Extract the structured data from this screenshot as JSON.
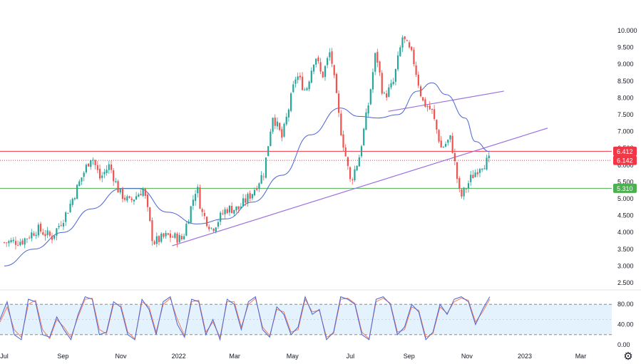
{
  "chart_data": {
    "type": "candlestick",
    "y_ticks": [
      "10.000",
      "9.500",
      "9.000",
      "8.500",
      "8.000",
      "7.500",
      "7.000",
      "6.500",
      "6.000",
      "5.500",
      "5.000",
      "4.500",
      "4.000",
      "3.500",
      "3.000",
      "2.500"
    ],
    "ylim": [
      2.5,
      10.0
    ],
    "x_ticks": [
      "Jul",
      "Sep",
      "Nov",
      "2022",
      "Mar",
      "May",
      "Jul",
      "Sep",
      "Nov",
      "2023",
      "Mar"
    ],
    "x_tick_dates": [
      "2021-07",
      "2021-09",
      "2021-11",
      "2022-01",
      "2022-03",
      "2022-05",
      "2022-07",
      "2022-09",
      "2022-11",
      "2023-01",
      "2023-03"
    ],
    "price_path": [
      [
        "2021-07-01",
        3.7
      ],
      [
        "2021-07-20",
        3.75
      ],
      [
        "2021-08-05",
        4.1
      ],
      [
        "2021-08-20",
        3.85
      ],
      [
        "2021-09-05",
        4.6
      ],
      [
        "2021-09-20",
        5.6
      ],
      [
        "2021-10-01",
        6.3
      ],
      [
        "2021-10-10",
        5.6
      ],
      [
        "2021-10-20",
        6.0
      ],
      [
        "2021-10-30",
        5.2
      ],
      [
        "2021-11-10",
        4.9
      ],
      [
        "2021-11-25",
        5.3
      ],
      [
        "2021-12-05",
        3.7
      ],
      [
        "2021-12-20",
        3.9
      ],
      [
        "2022-01-05",
        3.8
      ],
      [
        "2022-01-20",
        5.4
      ],
      [
        "2022-01-25",
        4.6
      ],
      [
        "2022-02-05",
        4.1
      ],
      [
        "2022-02-20",
        4.7
      ],
      [
        "2022-03-05",
        4.7
      ],
      [
        "2022-03-20",
        5.2
      ],
      [
        "2022-04-01",
        5.8
      ],
      [
        "2022-04-10",
        7.5
      ],
      [
        "2022-04-20",
        6.8
      ],
      [
        "2022-05-05",
        8.7
      ],
      [
        "2022-05-15",
        8.2
      ],
      [
        "2022-05-25",
        9.3
      ],
      [
        "2022-06-01",
        8.6
      ],
      [
        "2022-06-10",
        9.4
      ],
      [
        "2022-06-20",
        7.2
      ],
      [
        "2022-07-01",
        5.5
      ],
      [
        "2022-07-10",
        6.2
      ],
      [
        "2022-07-20",
        7.8
      ],
      [
        "2022-07-28",
        9.4
      ],
      [
        "2022-08-05",
        8.0
      ],
      [
        "2022-08-15",
        8.4
      ],
      [
        "2022-08-25",
        9.8
      ],
      [
        "2022-09-05",
        9.2
      ],
      [
        "2022-09-15",
        7.9
      ],
      [
        "2022-09-25",
        7.6
      ],
      [
        "2022-10-05",
        6.5
      ],
      [
        "2022-10-15",
        6.8
      ],
      [
        "2022-10-25",
        5.0
      ],
      [
        "2022-11-05",
        5.6
      ],
      [
        "2022-11-15",
        6.0
      ],
      [
        "2022-11-25",
        6.14
      ]
    ],
    "moving_average": [
      [
        "2021-07-01",
        3.0
      ],
      [
        "2021-08-01",
        3.5
      ],
      [
        "2021-09-01",
        4.0
      ],
      [
        "2021-10-01",
        4.7
      ],
      [
        "2021-11-01",
        5.3
      ],
      [
        "2021-11-20",
        5.3
      ],
      [
        "2021-12-20",
        4.6
      ],
      [
        "2022-01-20",
        4.25
      ],
      [
        "2022-02-20",
        4.4
      ],
      [
        "2022-03-20",
        4.9
      ],
      [
        "2022-04-20",
        5.7
      ],
      [
        "2022-05-20",
        6.9
      ],
      [
        "2022-06-20",
        7.7
      ],
      [
        "2022-07-10",
        7.45
      ],
      [
        "2022-07-30",
        7.4
      ],
      [
        "2022-08-20",
        7.5
      ],
      [
        "2022-09-10",
        8.2
      ],
      [
        "2022-09-25",
        8.45
      ],
      [
        "2022-10-10",
        8.1
      ],
      [
        "2022-10-30",
        7.4
      ],
      [
        "2022-11-10",
        6.7
      ],
      [
        "2022-11-25",
        6.4
      ]
    ],
    "trend_lines": [
      {
        "from": [
          "2021-12-25",
          3.6
        ],
        "to": [
          "2023-01-25",
          7.1
        ]
      },
      {
        "from": [
          "2022-08-10",
          7.6
        ],
        "to": [
          "2022-12-10",
          8.2
        ]
      }
    ],
    "horizontal_lines": [
      {
        "value": 6.412,
        "label": "6.412",
        "color": "#f23645",
        "style": "solid"
      },
      {
        "value": 6.142,
        "label": "6.142",
        "color": "#f23645",
        "style": "dotted"
      },
      {
        "value": 5.31,
        "label": "5.310",
        "color": "#4caf50",
        "style": "solid"
      }
    ],
    "oscillator": {
      "type": "stochastic",
      "y_ticks": [
        "80.00",
        "40.00",
        "0.00"
      ],
      "ylim": [
        0,
        100
      ],
      "levels": [
        80,
        20
      ],
      "k_series": [
        50,
        85,
        20,
        10,
        90,
        85,
        20,
        15,
        55,
        30,
        10,
        60,
        95,
        90,
        20,
        25,
        85,
        75,
        20,
        10,
        90,
        70,
        20,
        85,
        95,
        40,
        15,
        90,
        85,
        20,
        50,
        10,
        90,
        80,
        30,
        85,
        95,
        30,
        15,
        75,
        60,
        20,
        35,
        95,
        60,
        70,
        10,
        25,
        95,
        90,
        80,
        20,
        10,
        90,
        95,
        80,
        20,
        35,
        80,
        65,
        10,
        25,
        80,
        60,
        90,
        95,
        85,
        40,
        70,
        95
      ],
      "d_series": [
        45,
        75,
        30,
        15,
        80,
        88,
        30,
        12,
        50,
        35,
        15,
        55,
        90,
        92,
        30,
        22,
        80,
        80,
        25,
        12,
        85,
        75,
        25,
        80,
        92,
        50,
        18,
        85,
        88,
        25,
        45,
        15,
        85,
        85,
        35,
        80,
        92,
        35,
        18,
        70,
        65,
        25,
        30,
        90,
        65,
        68,
        15,
        22,
        90,
        92,
        82,
        25,
        12,
        85,
        92,
        82,
        25,
        30,
        75,
        68,
        15,
        22,
        75,
        62,
        85,
        92,
        88,
        45,
        65,
        90
      ]
    },
    "colors": {
      "up": "#26a69a",
      "down": "#ef5350",
      "moving_average": "#4a63d6",
      "trend_line": "#9c6fe0",
      "k_line": "#4a63d6",
      "d_line": "#f57c5a",
      "band": "#e3f2fd"
    },
    "grid": false
  }
}
